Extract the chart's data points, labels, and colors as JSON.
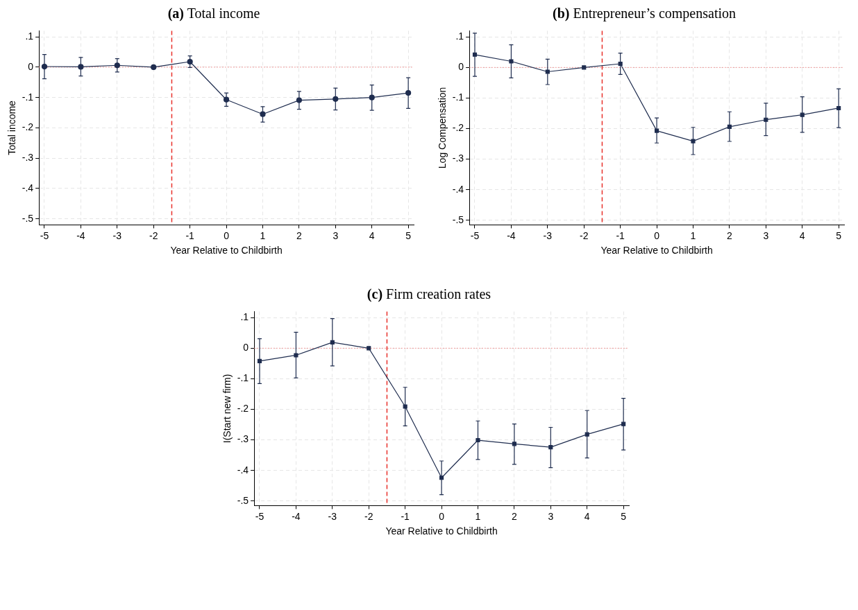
{
  "chart_data": [
    {
      "type": "line",
      "title": "(a) Total income",
      "xlabel": "Year Relative to Childbirth",
      "ylabel": "Total income",
      "marker": "circle",
      "line_style": "solid",
      "grid": true,
      "legend": false,
      "x": [
        -5,
        -4,
        -3,
        -2,
        -1,
        0,
        1,
        2,
        3,
        4,
        5
      ],
      "xlim": [
        -5.15,
        5.15
      ],
      "xticks": [
        -5,
        -4,
        -3,
        -2,
        -1,
        0,
        1,
        2,
        3,
        4,
        5
      ],
      "ylim": [
        -0.52,
        0.12
      ],
      "yticks": [
        {
          "value": -0.5,
          "label": "-.5"
        },
        {
          "value": -0.4,
          "label": "-.4"
        },
        {
          "value": -0.3,
          "label": "-.3"
        },
        {
          "value": -0.2,
          "label": "-.2"
        },
        {
          "value": -0.1,
          "label": "-.1"
        },
        {
          "value": 0,
          "label": "0"
        },
        {
          "value": 0.1,
          "label": ".1"
        }
      ],
      "ref_lines": [
        {
          "axis": "x",
          "value": -1.5,
          "color": "#e8302a",
          "line_style": "dashed"
        },
        {
          "axis": "y",
          "value": 0,
          "color": "#f08080",
          "line_style": "dotted"
        }
      ],
      "series": [
        {
          "color": "#1f2d4f",
          "values": [
            0.002,
            0.001,
            0.006,
            0,
            0.018,
            -0.107,
            -0.155,
            -0.109,
            -0.105,
            -0.1,
            -0.085
          ],
          "errors": [
            [
              -0.038,
              0.042
            ],
            [
              -0.029,
              0.032
            ],
            [
              -0.016,
              0.028
            ],
            null,
            [
              -0.001,
              0.037
            ],
            [
              -0.129,
              -0.085
            ],
            [
              -0.181,
              -0.13
            ],
            [
              -0.139,
              -0.08
            ],
            [
              -0.141,
              -0.069
            ],
            [
              -0.142,
              -0.059
            ],
            [
              -0.136,
              -0.035
            ]
          ]
        }
      ]
    },
    {
      "type": "line",
      "title": "(b) Entrepreneur’s compensation",
      "xlabel": "Year Relative to Childbirth",
      "ylabel": "Log Compensation",
      "marker": "square",
      "line_style": "solid",
      "grid": true,
      "legend": false,
      "x": [
        -5,
        -4,
        -3,
        -2,
        -1,
        0,
        1,
        2,
        3,
        4,
        5
      ],
      "xlim": [
        -5.15,
        5.15
      ],
      "xticks": [
        -5,
        -4,
        -3,
        -2,
        -1,
        0,
        1,
        2,
        3,
        4,
        5
      ],
      "ylim": [
        -0.515,
        0.12
      ],
      "yticks": [
        {
          "value": -0.5,
          "label": "-.5"
        },
        {
          "value": -0.4,
          "label": "-.4"
        },
        {
          "value": -0.3,
          "label": "-.3"
        },
        {
          "value": -0.2,
          "label": "-.2"
        },
        {
          "value": -0.1,
          "label": "-.1"
        },
        {
          "value": 0,
          "label": "0"
        },
        {
          "value": 0.1,
          "label": ".1"
        }
      ],
      "ref_lines": [
        {
          "axis": "x",
          "value": -1.5,
          "color": "#e8302a",
          "line_style": "dashed"
        },
        {
          "axis": "y",
          "value": 0,
          "color": "#f08080",
          "line_style": "dotted"
        }
      ],
      "series": [
        {
          "color": "#1f2d4f",
          "values": [
            0.042,
            0.02,
            -0.014,
            0,
            0.012,
            -0.207,
            -0.241,
            -0.194,
            -0.171,
            -0.155,
            -0.133
          ],
          "errors": [
            [
              -0.029,
              0.112
            ],
            [
              -0.034,
              0.074
            ],
            [
              -0.056,
              0.027
            ],
            null,
            [
              -0.023,
              0.047
            ],
            [
              -0.247,
              -0.165
            ],
            [
              -0.285,
              -0.196
            ],
            [
              -0.242,
              -0.145
            ],
            [
              -0.223,
              -0.117
            ],
            [
              -0.212,
              -0.096
            ],
            [
              -0.197,
              -0.07
            ]
          ]
        }
      ]
    },
    {
      "type": "line",
      "title": "(c) Firm creation rates",
      "xlabel": "Year Relative to Childbirth",
      "ylabel": "I(Start new firm)",
      "marker": "square",
      "line_style": "solid",
      "grid": true,
      "legend": false,
      "x": [
        -5,
        -4,
        -3,
        -2,
        -1,
        0,
        1,
        2,
        3,
        4,
        5
      ],
      "xlim": [
        -5.15,
        5.15
      ],
      "xticks": [
        -5,
        -4,
        -3,
        -2,
        -1,
        0,
        1,
        2,
        3,
        4,
        5
      ],
      "ylim": [
        -0.515,
        0.12
      ],
      "yticks": [
        {
          "value": -0.5,
          "label": "-.5"
        },
        {
          "value": -0.4,
          "label": "-.4"
        },
        {
          "value": -0.3,
          "label": "-.3"
        },
        {
          "value": -0.2,
          "label": "-.2"
        },
        {
          "value": -0.1,
          "label": "-.1"
        },
        {
          "value": 0,
          "label": "0"
        },
        {
          "value": 0.1,
          "label": ".1"
        }
      ],
      "ref_lines": [
        {
          "axis": "x",
          "value": -1.5,
          "color": "#e8302a",
          "line_style": "dashed"
        },
        {
          "axis": "y",
          "value": 0,
          "color": "#f08080",
          "line_style": "dotted"
        }
      ],
      "series": [
        {
          "color": "#1f2d4f",
          "values": [
            -0.042,
            -0.023,
            0.019,
            0,
            -0.191,
            -0.424,
            -0.301,
            -0.313,
            -0.324,
            -0.282,
            -0.248
          ],
          "errors": [
            [
              -0.116,
              0.031
            ],
            [
              -0.097,
              0.052
            ],
            [
              -0.058,
              0.097
            ],
            null,
            [
              -0.254,
              -0.128
            ],
            [
              -0.479,
              -0.369
            ],
            [
              -0.364,
              -0.238
            ],
            [
              -0.38,
              -0.248
            ],
            [
              -0.391,
              -0.259
            ],
            [
              -0.359,
              -0.204
            ],
            [
              -0.333,
              -0.164
            ]
          ]
        }
      ]
    }
  ]
}
